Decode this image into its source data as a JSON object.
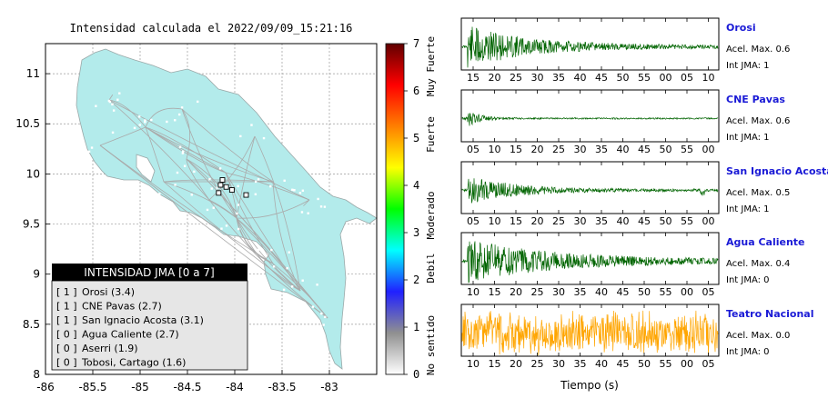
{
  "chart_data": [
    {
      "type": "scatter",
      "title": "Intensidad calculada el 2022/09/09_15:21:16",
      "xlim": [
        -86.0,
        -82.5
      ],
      "ylim": [
        8.0,
        11.3
      ],
      "x_ticks": [
        -86,
        -85.5,
        -85,
        -84.5,
        -84,
        -83.5,
        -83
      ],
      "x_tick_labels": [
        "-86",
        "-85.5",
        "-85",
        "-84.5",
        "-84",
        "-83.5",
        "-83"
      ],
      "y_ticks": [
        8,
        8.5,
        9,
        9.5,
        10,
        10.5,
        11
      ],
      "y_tick_labels": [
        "8",
        "8.5",
        "9",
        "9.5",
        "10",
        "10.5",
        "11"
      ],
      "grid": true,
      "land_color": "#b3ebeb",
      "legend": {
        "title": "INTENSIDAD JMA [0 a 7]",
        "entries": [
          {
            "jma": "[ 1 ]",
            "station": "Orosi (3.4)"
          },
          {
            "jma": "[ 1 ]",
            "station": "CNE Pavas (2.7)"
          },
          {
            "jma": "[ 1 ]",
            "station": "San Ignacio Acosta (3.1)"
          },
          {
            "jma": "[ 0 ]",
            "station": "Agua Caliente (2.7)"
          },
          {
            "jma": "[ 0 ]",
            "station": "Aserri (1.9)"
          },
          {
            "jma": "[ 0 ]",
            "station": "Tobosi, Cartago (1.6)"
          }
        ],
        "placement": "bottom-left"
      },
      "stations_marked": [
        {
          "lon": -84.13,
          "lat": 9.94
        },
        {
          "lon": -84.15,
          "lat": 9.89
        },
        {
          "lon": -84.09,
          "lat": 9.87
        },
        {
          "lon": -84.03,
          "lat": 9.84
        },
        {
          "lon": -84.17,
          "lat": 9.81
        },
        {
          "lon": -83.88,
          "lat": 9.79
        }
      ]
    },
    {
      "type": "heatmap",
      "colorbar": true,
      "range": [
        0,
        7
      ],
      "tick_labels": [
        "0",
        "1",
        "2",
        "3",
        "4",
        "5",
        "6",
        "7"
      ],
      "category_labels": [
        "No sentido",
        "Debil",
        "Moderado",
        "Fuerte",
        "Muy Fuerte"
      ],
      "colors": [
        "#ffffff",
        "#909090",
        "#2020ff",
        "#00ffff",
        "#00ff00",
        "#ffff00",
        "#ff7f00",
        "#ff0000",
        "#600000"
      ]
    },
    {
      "type": "line",
      "xlabel": "Tiempo (s)",
      "series": [
        {
          "name": "Orosi",
          "acel_label": "Acel. Max. 0.6",
          "jma_label": "Int JMA: 1",
          "color": "#006400",
          "tick_labels": [
            "15",
            "20",
            "25",
            "30",
            "35",
            "40",
            "45",
            "50",
            "55",
            "00",
            "05",
            "10"
          ],
          "peak": 0.9,
          "decay": 0.22,
          "spike": 0.05
        },
        {
          "name": "CNE Pavas",
          "acel_label": "Acel. Max. 0.6",
          "jma_label": "Int JMA: 1",
          "color": "#006400",
          "tick_labels": [
            "05",
            "10",
            "15",
            "20",
            "25",
            "30",
            "35",
            "40",
            "45",
            "50",
            "55",
            "00"
          ],
          "peak": 0.35,
          "decay": 0.05,
          "spike": 0.05
        },
        {
          "name": "San Ignacio Acosta",
          "acel_label": "Acel. Max. 0.5",
          "jma_label": "Int JMA: 1",
          "color": "#006400",
          "tick_labels": [
            "05",
            "10",
            "15",
            "20",
            "25",
            "30",
            "35",
            "40",
            "45",
            "50",
            "55",
            "00"
          ],
          "peak": 0.55,
          "decay": 0.2,
          "spike": 0.95
        },
        {
          "name": "Agua Caliente",
          "acel_label": "Acel. Max. 0.4",
          "jma_label": "Int JMA: 0",
          "color": "#006400",
          "tick_labels": [
            "10",
            "15",
            "20",
            "25",
            "30",
            "35",
            "40",
            "45",
            "50",
            "55",
            "00",
            "05"
          ],
          "peak": 0.85,
          "decay": 0.35,
          "spike": 0.02
        },
        {
          "name": "Teatro Nacional",
          "acel_label": "Acel. Max. 0.0",
          "jma_label": "Int JMA: 0",
          "color": "#ffa500",
          "tick_labels": [
            "10",
            "15",
            "20",
            "25",
            "30",
            "35",
            "40",
            "45",
            "50",
            "55",
            "00",
            "05"
          ],
          "peak": 0.9,
          "decay": 1.0,
          "spike": 0.02
        }
      ]
    }
  ]
}
